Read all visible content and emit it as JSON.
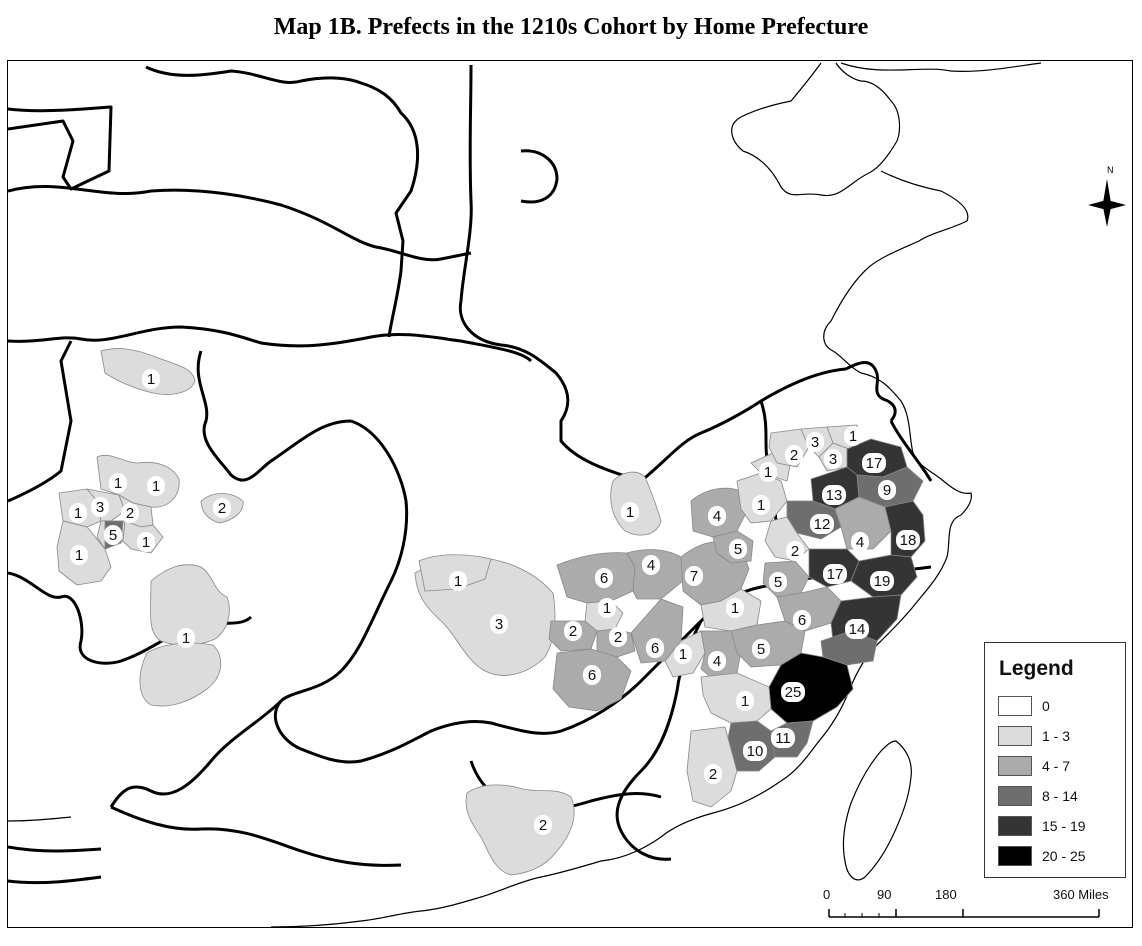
{
  "title": "Map 1B. Prefects in the 1210s Cohort by Home Prefecture",
  "colors": {
    "c0": "#ffffff",
    "c1": "#dcdcdc",
    "c2": "#ababab",
    "c3": "#6e6e6e",
    "c4": "#343434",
    "c5": "#000000"
  },
  "legend": {
    "title": "Legend",
    "items": [
      {
        "label": "0",
        "color": "#ffffff"
      },
      {
        "label": "1 - 3",
        "color": "#dcdcdc"
      },
      {
        "label": "4 - 7",
        "color": "#ababab"
      },
      {
        "label": "8 - 14",
        "color": "#6e6e6e"
      },
      {
        "label": "15 - 19",
        "color": "#343434"
      },
      {
        "label": "20 - 25",
        "color": "#000000"
      }
    ]
  },
  "scale": {
    "labels": [
      "0",
      "90",
      "180",
      "360 Miles"
    ]
  },
  "north_label": "N",
  "prefecture_counts": [
    {
      "id": "northwest-a",
      "count": "1"
    },
    {
      "id": "sichuan-1",
      "count": "1"
    },
    {
      "id": "sichuan-2",
      "count": "1"
    },
    {
      "id": "sichuan-3",
      "count": "1"
    },
    {
      "id": "sichuan-4",
      "count": "3"
    },
    {
      "id": "sichuan-5",
      "count": "2"
    },
    {
      "id": "sichuan-6",
      "count": "2"
    },
    {
      "id": "sichuan-7",
      "count": "5"
    },
    {
      "id": "sichuan-8",
      "count": "1"
    },
    {
      "id": "sichuan-9",
      "count": "1"
    },
    {
      "id": "sichuan-10",
      "count": "1"
    },
    {
      "id": "huai-west",
      "count": "1"
    },
    {
      "id": "hubei-west",
      "count": "1"
    },
    {
      "id": "hubei-3",
      "count": "3"
    },
    {
      "id": "jiangxi-6a",
      "count": "6"
    },
    {
      "id": "jiangxi-4a",
      "count": "4"
    },
    {
      "id": "jiangxi-7",
      "count": "7"
    },
    {
      "id": "jiangxi-1a",
      "count": "1"
    },
    {
      "id": "jiangxi-2a",
      "count": "2"
    },
    {
      "id": "jiangxi-2b",
      "count": "2"
    },
    {
      "id": "jiangxi-6b",
      "count": "6"
    },
    {
      "id": "jiangxi-6c",
      "count": "6"
    },
    {
      "id": "jiangxi-1b",
      "count": "1"
    },
    {
      "id": "jiangxi-1c",
      "count": "1"
    },
    {
      "id": "jiangxi-4b",
      "count": "4"
    },
    {
      "id": "huainan-4",
      "count": "4"
    },
    {
      "id": "huainan-5",
      "count": "5"
    },
    {
      "id": "huainan-2a",
      "count": "2"
    },
    {
      "id": "huainan-3a",
      "count": "3"
    },
    {
      "id": "huainan-3b",
      "count": "3"
    },
    {
      "id": "huainan-1a",
      "count": "1"
    },
    {
      "id": "huainan-1b",
      "count": "1"
    },
    {
      "id": "huainan-1c",
      "count": "1"
    },
    {
      "id": "jiangnan-17a",
      "count": "17"
    },
    {
      "id": "jiangnan-13",
      "count": "13"
    },
    {
      "id": "jiangnan-9",
      "count": "9"
    },
    {
      "id": "jiangnan-12",
      "count": "12"
    },
    {
      "id": "jiangnan-2",
      "count": "2"
    },
    {
      "id": "jiangnan-4",
      "count": "4"
    },
    {
      "id": "zhejiang-18",
      "count": "18"
    },
    {
      "id": "zhejiang-17b",
      "count": "17"
    },
    {
      "id": "zhejiang-19",
      "count": "19"
    },
    {
      "id": "zhejiang-5",
      "count": "5"
    },
    {
      "id": "zhejiang-6",
      "count": "6"
    },
    {
      "id": "zhejiang-14",
      "count": "14"
    },
    {
      "id": "fujian-5",
      "count": "5"
    },
    {
      "id": "fujian-25",
      "count": "25"
    },
    {
      "id": "fujian-1",
      "count": "1"
    },
    {
      "id": "fujian-10",
      "count": "10"
    },
    {
      "id": "fujian-11",
      "count": "11"
    },
    {
      "id": "fujian-2",
      "count": "2"
    },
    {
      "id": "guangdong-2",
      "count": "2"
    }
  ]
}
